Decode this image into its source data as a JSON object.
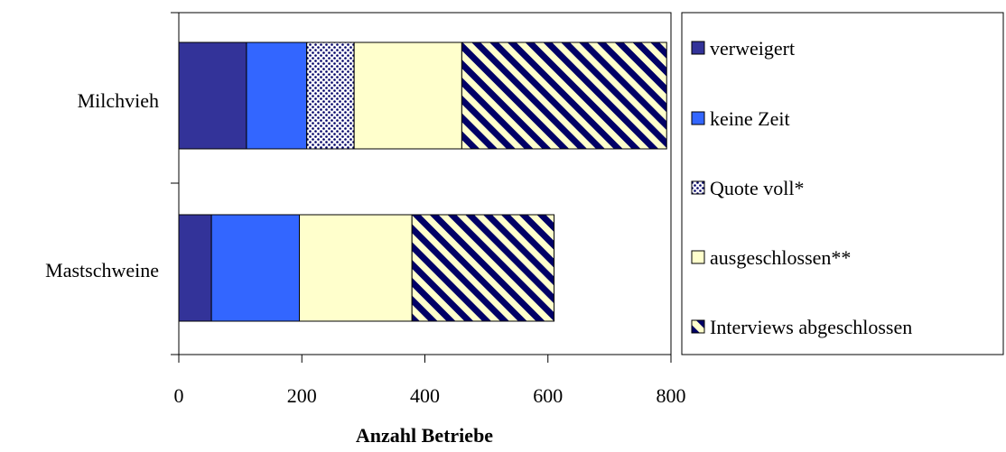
{
  "chart_data": {
    "type": "bar",
    "orientation": "horizontal",
    "stacked": true,
    "categories": [
      "Milchvieh",
      "Mastschweine"
    ],
    "series": [
      {
        "name": "verweigert",
        "values": [
          110,
          53
        ],
        "color": "#333399",
        "pattern": "solid"
      },
      {
        "name": "keine Zeit",
        "values": [
          98,
          143
        ],
        "color": "#3366FF",
        "pattern": "solid"
      },
      {
        "name": "Quote voll*",
        "values": [
          77,
          0
        ],
        "color": "#000066",
        "pattern": "dots"
      },
      {
        "name": "ausgeschlossen**",
        "values": [
          175,
          183
        ],
        "color": "#FFFFCC",
        "pattern": "solid"
      },
      {
        "name": "Interviews abgeschlossen",
        "values": [
          333,
          231
        ],
        "color": "#000066",
        "pattern": "diagonal-stripes"
      }
    ],
    "xlabel": "Anzahl Betriebe",
    "ylabel": "",
    "xlim": [
      0,
      800
    ],
    "xticks": [
      0,
      200,
      400,
      600,
      800
    ],
    "grid": false,
    "legend_position": "right"
  }
}
